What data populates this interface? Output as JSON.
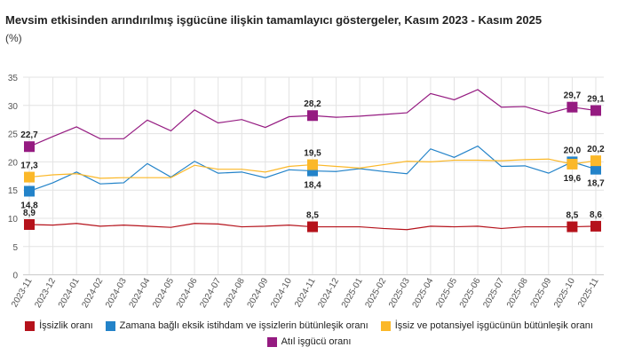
{
  "chart_data": {
    "type": "line",
    "title": "Mevsim etkisinden arındırılmış işgücüne ilişkin tamamlayıcı göstergeler, Kasım 2023 - Kasım 2025",
    "ylabel": "(%)",
    "ylim": [
      0,
      35
    ],
    "yticks": [
      0,
      5,
      10,
      15,
      20,
      25,
      30,
      35
    ],
    "grid": true,
    "legend_position": "bottom",
    "categories": [
      "2023-11",
      "2023-12",
      "2024-01",
      "2024-02",
      "2024-03",
      "2024-04",
      "2024-05",
      "2024-06",
      "2024-07",
      "2024-08",
      "2024-09",
      "2024-10",
      "2024-11",
      "2024-12",
      "2025-01",
      "2025-02",
      "2025-03",
      "2025-04",
      "2025-05",
      "2025-06",
      "2025-07",
      "2025-08",
      "2025-09",
      "2025-10",
      "2025-11"
    ],
    "labeled_indices": [
      0,
      12,
      23,
      24
    ],
    "series": [
      {
        "name": "İşsizlik oranı",
        "color": "#b5121b",
        "values": [
          8.9,
          8.8,
          9.1,
          8.6,
          8.8,
          8.6,
          8.4,
          9.1,
          9.0,
          8.5,
          8.6,
          8.8,
          8.5,
          8.5,
          8.5,
          8.2,
          8.0,
          8.6,
          8.5,
          8.6,
          8.2,
          8.5,
          8.5,
          8.5,
          8.6
        ],
        "label_side": [
          "above",
          "above",
          "above",
          "above"
        ]
      },
      {
        "name": "Zamana bağlı eksik istihdam ve işsizlerin bütünleşik oranı",
        "color": "#2383c9",
        "values": [
          14.8,
          16.3,
          18.2,
          16.1,
          16.3,
          19.7,
          17.3,
          20.1,
          18.0,
          18.2,
          17.2,
          18.6,
          18.4,
          18.3,
          18.8,
          18.3,
          17.9,
          22.3,
          20.8,
          22.8,
          19.2,
          19.3,
          18.0,
          20.0,
          18.7
        ],
        "label_side": [
          "below",
          "below",
          "above",
          "below"
        ]
      },
      {
        "name": "İşsiz ve potansiyel işgücünün bütünleşik oranı",
        "color": "#fbb829",
        "values": [
          17.3,
          17.7,
          17.9,
          17.1,
          17.2,
          17.2,
          17.2,
          19.4,
          18.7,
          18.7,
          18.2,
          19.2,
          19.5,
          19.2,
          18.9,
          19.5,
          20.1,
          20.0,
          20.3,
          20.3,
          20.2,
          20.4,
          20.5,
          19.6,
          20.2
        ],
        "label_side": [
          "above",
          "above",
          "below",
          "above"
        ]
      },
      {
        "name": "Atıl işgücü oranı",
        "color": "#951b81",
        "values": [
          22.7,
          24.5,
          26.2,
          24.1,
          24.1,
          27.4,
          25.5,
          29.2,
          26.9,
          27.5,
          26.1,
          28.0,
          28.2,
          27.9,
          28.1,
          28.4,
          28.7,
          32.1,
          31.0,
          32.8,
          29.7,
          29.8,
          28.6,
          29.7,
          29.1
        ],
        "label_side": [
          "above",
          "above",
          "above",
          "above"
        ]
      }
    ]
  }
}
